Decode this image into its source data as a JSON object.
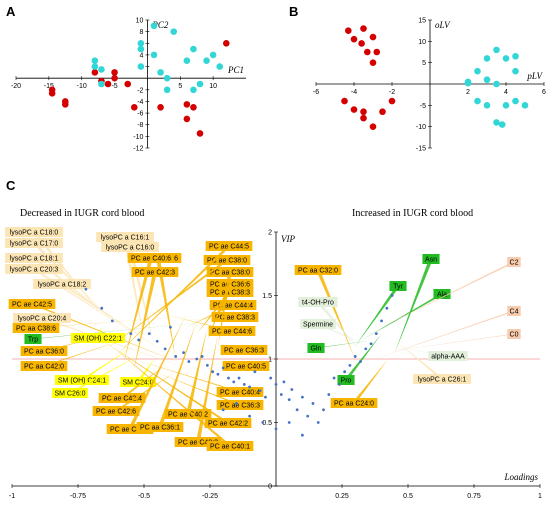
{
  "panels": {
    "a": "A",
    "b": "B",
    "c": "C"
  },
  "colors": {
    "group1": "#d40000",
    "group2": "#33d6d6",
    "loading": "#4472c4",
    "threshold": "#f4b0b0"
  },
  "chart_data": [
    {
      "type": "scatter",
      "id": "A",
      "xlabel": "PC1",
      "ylabel": "PC2",
      "xlim": [
        -20,
        15
      ],
      "ylim": [
        -12,
        10
      ],
      "xticks": [
        -20,
        -15,
        -10,
        -5,
        5,
        10
      ],
      "yticks": [
        -12,
        -10,
        -8,
        -6,
        -4,
        -2,
        2,
        4,
        6,
        8,
        10
      ],
      "series": [
        {
          "color": "red",
          "points": [
            [
              -14.5,
              -2
            ],
            [
              -14.5,
              -2.6
            ],
            [
              -12.5,
              -4
            ],
            [
              -12.5,
              -4.5
            ],
            [
              -8,
              1
            ],
            [
              -7,
              -0.5
            ],
            [
              -6,
              -1
            ],
            [
              -5,
              0
            ],
            [
              -5,
              1
            ],
            [
              -3,
              -1
            ],
            [
              -2,
              -5
            ],
            [
              2,
              -5
            ],
            [
              6,
              -4.5
            ],
            [
              7,
              -5
            ],
            [
              6,
              -7
            ],
            [
              8,
              -9.5
            ],
            [
              12,
              6
            ]
          ]
        },
        {
          "color": "cyan",
          "points": [
            [
              -8,
              3
            ],
            [
              -8,
              2
            ],
            [
              -7,
              1.5
            ],
            [
              -7,
              -1
            ],
            [
              -1,
              2
            ],
            [
              -1,
              5
            ],
            [
              -1,
              6
            ],
            [
              1,
              9
            ],
            [
              1,
              4
            ],
            [
              2,
              1
            ],
            [
              3,
              0
            ],
            [
              3,
              -2
            ],
            [
              4,
              8
            ],
            [
              6,
              3
            ],
            [
              7,
              5
            ],
            [
              7,
              -2
            ],
            [
              8,
              -1
            ],
            [
              9,
              3
            ],
            [
              10,
              4
            ],
            [
              11,
              2
            ]
          ]
        }
      ]
    },
    {
      "type": "scatter",
      "id": "B",
      "xlabel": "pLV",
      "ylabel": "oLV",
      "xlim": [
        -6,
        6
      ],
      "ylim": [
        -15,
        15
      ],
      "xticks": [
        -6,
        -4,
        -2,
        2,
        4,
        6
      ],
      "yticks": [
        -15,
        -10,
        -5,
        5,
        10,
        15
      ],
      "series": [
        {
          "color": "red",
          "points": [
            [
              -4.3,
              12.5
            ],
            [
              -3.5,
              13
            ],
            [
              -4,
              10.5
            ],
            [
              -3.6,
              9.5
            ],
            [
              -3,
              11
            ],
            [
              -2.8,
              7.5
            ],
            [
              -3.3,
              7.5
            ],
            [
              -3,
              5
            ],
            [
              -4.5,
              -4
            ],
            [
              -4,
              -6
            ],
            [
              -3.5,
              -6.5
            ],
            [
              -3,
              -10
            ],
            [
              -2.5,
              -6.5
            ],
            [
              -2,
              -4
            ],
            [
              -3.5,
              -8
            ]
          ]
        },
        {
          "color": "cyan",
          "points": [
            [
              2,
              0.5
            ],
            [
              2,
              0.2
            ],
            [
              2.5,
              3
            ],
            [
              3,
              6
            ],
            [
              3,
              1
            ],
            [
              3.5,
              8
            ],
            [
              3.5,
              0
            ],
            [
              4,
              6
            ],
            [
              4.5,
              6.5
            ],
            [
              4.5,
              3
            ],
            [
              2.5,
              -4
            ],
            [
              3,
              -5
            ],
            [
              3.5,
              -9
            ],
            [
              4,
              -5
            ],
            [
              4.5,
              -4
            ],
            [
              5,
              -5
            ],
            [
              3.8,
              -9.5
            ]
          ]
        }
      ]
    },
    {
      "type": "scatter",
      "id": "C",
      "xlabel": "Loadings",
      "ylabel": "VIP",
      "xlim": [
        -1,
        1
      ],
      "ylim": [
        0,
        2
      ],
      "xticks": [
        -1,
        -0.75,
        -0.5,
        -0.25,
        0.25,
        0.5,
        0.75,
        1
      ],
      "yticks": [
        0,
        0.5,
        1,
        1.5,
        2
      ],
      "threshold": 1,
      "annotations": [
        {
          "text": "Decreased in IUGR cord blood"
        },
        {
          "text": "Increased in IUGR cord blood"
        }
      ],
      "points": [
        [
          -0.72,
          1.55
        ],
        [
          -0.66,
          1.4
        ],
        [
          -0.62,
          1.3
        ],
        [
          -0.55,
          1.2
        ],
        [
          -0.52,
          1.15
        ],
        [
          -0.48,
          1.2
        ],
        [
          -0.45,
          1.14
        ],
        [
          -0.42,
          1.08
        ],
        [
          -0.4,
          1.25
        ],
        [
          -0.38,
          1.02
        ],
        [
          -0.35,
          1.05
        ],
        [
          -0.33,
          0.98
        ],
        [
          -0.3,
          1
        ],
        [
          -0.28,
          1.02
        ],
        [
          -0.26,
          0.95
        ],
        [
          -0.24,
          0.9
        ],
        [
          -0.22,
          0.88
        ],
        [
          -0.2,
          0.93
        ],
        [
          -0.18,
          0.85
        ],
        [
          -0.16,
          0.82
        ],
        [
          -0.14,
          0.85
        ],
        [
          -0.12,
          0.8
        ],
        [
          -0.1,
          0.78
        ],
        [
          -0.08,
          0.9
        ],
        [
          -0.06,
          0.75
        ],
        [
          -0.04,
          0.7
        ],
        [
          -0.02,
          0.85
        ],
        [
          0,
          0.8
        ],
        [
          0.02,
          0.72
        ],
        [
          0.03,
          0.82
        ],
        [
          0.05,
          0.68
        ],
        [
          0.06,
          0.76
        ],
        [
          0.08,
          0.6
        ],
        [
          0.1,
          0.7
        ],
        [
          0.12,
          0.55
        ],
        [
          0.14,
          0.65
        ],
        [
          0.16,
          0.5
        ],
        [
          0.18,
          0.6
        ],
        [
          0.2,
          0.72
        ],
        [
          0.22,
          0.85
        ],
        [
          0.24,
          0.8
        ],
        [
          0.26,
          0.9
        ],
        [
          0.28,
          0.95
        ],
        [
          0.3,
          1.02
        ],
        [
          0.32,
          0.98
        ],
        [
          0.34,
          1.08
        ],
        [
          0.36,
          1.12
        ],
        [
          0.38,
          1.2
        ],
        [
          0.4,
          1.3
        ],
        [
          0.42,
          1.4
        ],
        [
          0.44,
          1.5
        ],
        [
          -0.05,
          0.5
        ],
        [
          -0.1,
          0.55
        ],
        [
          0.0,
          0.45
        ],
        [
          0.05,
          0.5
        ],
        [
          -0.2,
          0.6
        ],
        [
          -0.15,
          0.65
        ],
        [
          0.1,
          0.4
        ]
      ],
      "labels_left": [
        {
          "text": "lysoPC a C18:0",
          "color": "#fbe5b5"
        },
        {
          "text": "lysoPC a C17:0",
          "color": "#fbe5b5"
        },
        {
          "text": "lysoPC a C18:1",
          "color": "#fbe5b5"
        },
        {
          "text": "lysoPC a C20:3",
          "color": "#fbe5b5"
        },
        {
          "text": "lysoPC a C16:1",
          "color": "#fbe5b5"
        },
        {
          "text": "lysoPC a C16:0",
          "color": "#fbe5b5"
        },
        {
          "text": "lysoPC a C18:2",
          "color": "#fbe5b5"
        },
        {
          "text": "PC aa C40:6",
          "color": "#f7b500"
        },
        {
          "text": "PC ae C42:5",
          "color": "#f7b500"
        },
        {
          "text": "lysoPC a C20:4",
          "color": "#fbe5b5"
        },
        {
          "text": "PC aa C38:6",
          "color": "#f7b500"
        },
        {
          "text": "Trp",
          "color": "#22bb22"
        },
        {
          "text": "SM (OH) C22:1",
          "color": "#ffff00"
        },
        {
          "text": "PC aa C36:0",
          "color": "#f7b500"
        },
        {
          "text": "PC aa C42:0",
          "color": "#f7b500"
        },
        {
          "text": "SM (OH) C24:1",
          "color": "#ffff00"
        },
        {
          "text": "SM C26:0",
          "color": "#ffff00"
        },
        {
          "text": "SM C24:0",
          "color": "#ffff00"
        },
        {
          "text": "PC ae C42:4",
          "color": "#f7b500"
        },
        {
          "text": "PC ae C42:6",
          "color": "#f7b500"
        },
        {
          "text": "PC ae C38:6",
          "color": "#f7b500"
        },
        {
          "text": "PC aa C36:1",
          "color": "#f7b500"
        },
        {
          "text": "PC ae C40:2",
          "color": "#f7b500"
        },
        {
          "text": "PC ae C40:3",
          "color": "#f7b500"
        },
        {
          "text": "PC ae C42:2",
          "color": "#f7b500"
        },
        {
          "text": "PC ae C40:1",
          "color": "#f7b500"
        },
        {
          "text": "PC ae C36:3",
          "color": "#f7b500"
        },
        {
          "text": "PC ae C40:4",
          "color": "#f7b500"
        },
        {
          "text": "PC ae C40:5",
          "color": "#f7b500"
        },
        {
          "text": "PC ae C36:3",
          "color": "#f7b500"
        },
        {
          "text": "PC ae C44:6",
          "color": "#f7b500"
        },
        {
          "text": "PC ae C38:3",
          "color": "#f7b500"
        },
        {
          "text": "PC ae C44:4",
          "color": "#f7b500"
        },
        {
          "text": "PC aa C38:3",
          "color": "#f7b500"
        },
        {
          "text": "PC ae C36:6",
          "color": "#f7b500"
        },
        {
          "text": "PC aa C38:0",
          "color": "#f7b500"
        },
        {
          "text": "PC ae C38:0",
          "color": "#f7b500"
        },
        {
          "text": "PC ae C44:5",
          "color": "#f7b500"
        },
        {
          "text": "PC ae C40:6",
          "color": "#f7b500"
        },
        {
          "text": "PC ae C42:3",
          "color": "#f7b500"
        }
      ],
      "labels_right": [
        {
          "text": "PC aa C32:0",
          "color": "#f7b500"
        },
        {
          "text": "t4-OH-Pro",
          "color": "#e2efda"
        },
        {
          "text": "Spermine",
          "color": "#e2efda"
        },
        {
          "text": "Gln",
          "color": "#22bb22"
        },
        {
          "text": "Pro",
          "color": "#22bb22"
        },
        {
          "text": "PC aa C24:0",
          "color": "#f7b500"
        },
        {
          "text": "Asn",
          "color": "#22bb22"
        },
        {
          "text": "Tyr",
          "color": "#22bb22"
        },
        {
          "text": "Ala",
          "color": "#22bb22"
        },
        {
          "text": "C2",
          "color": "#f8cbad"
        },
        {
          "text": "C4",
          "color": "#f8cbad"
        },
        {
          "text": "C0",
          "color": "#f8cbad"
        },
        {
          "text": "alpha-AAA",
          "color": "#e2efda"
        },
        {
          "text": "lysoPC a C26:1",
          "color": "#fbe5b5"
        }
      ]
    }
  ]
}
